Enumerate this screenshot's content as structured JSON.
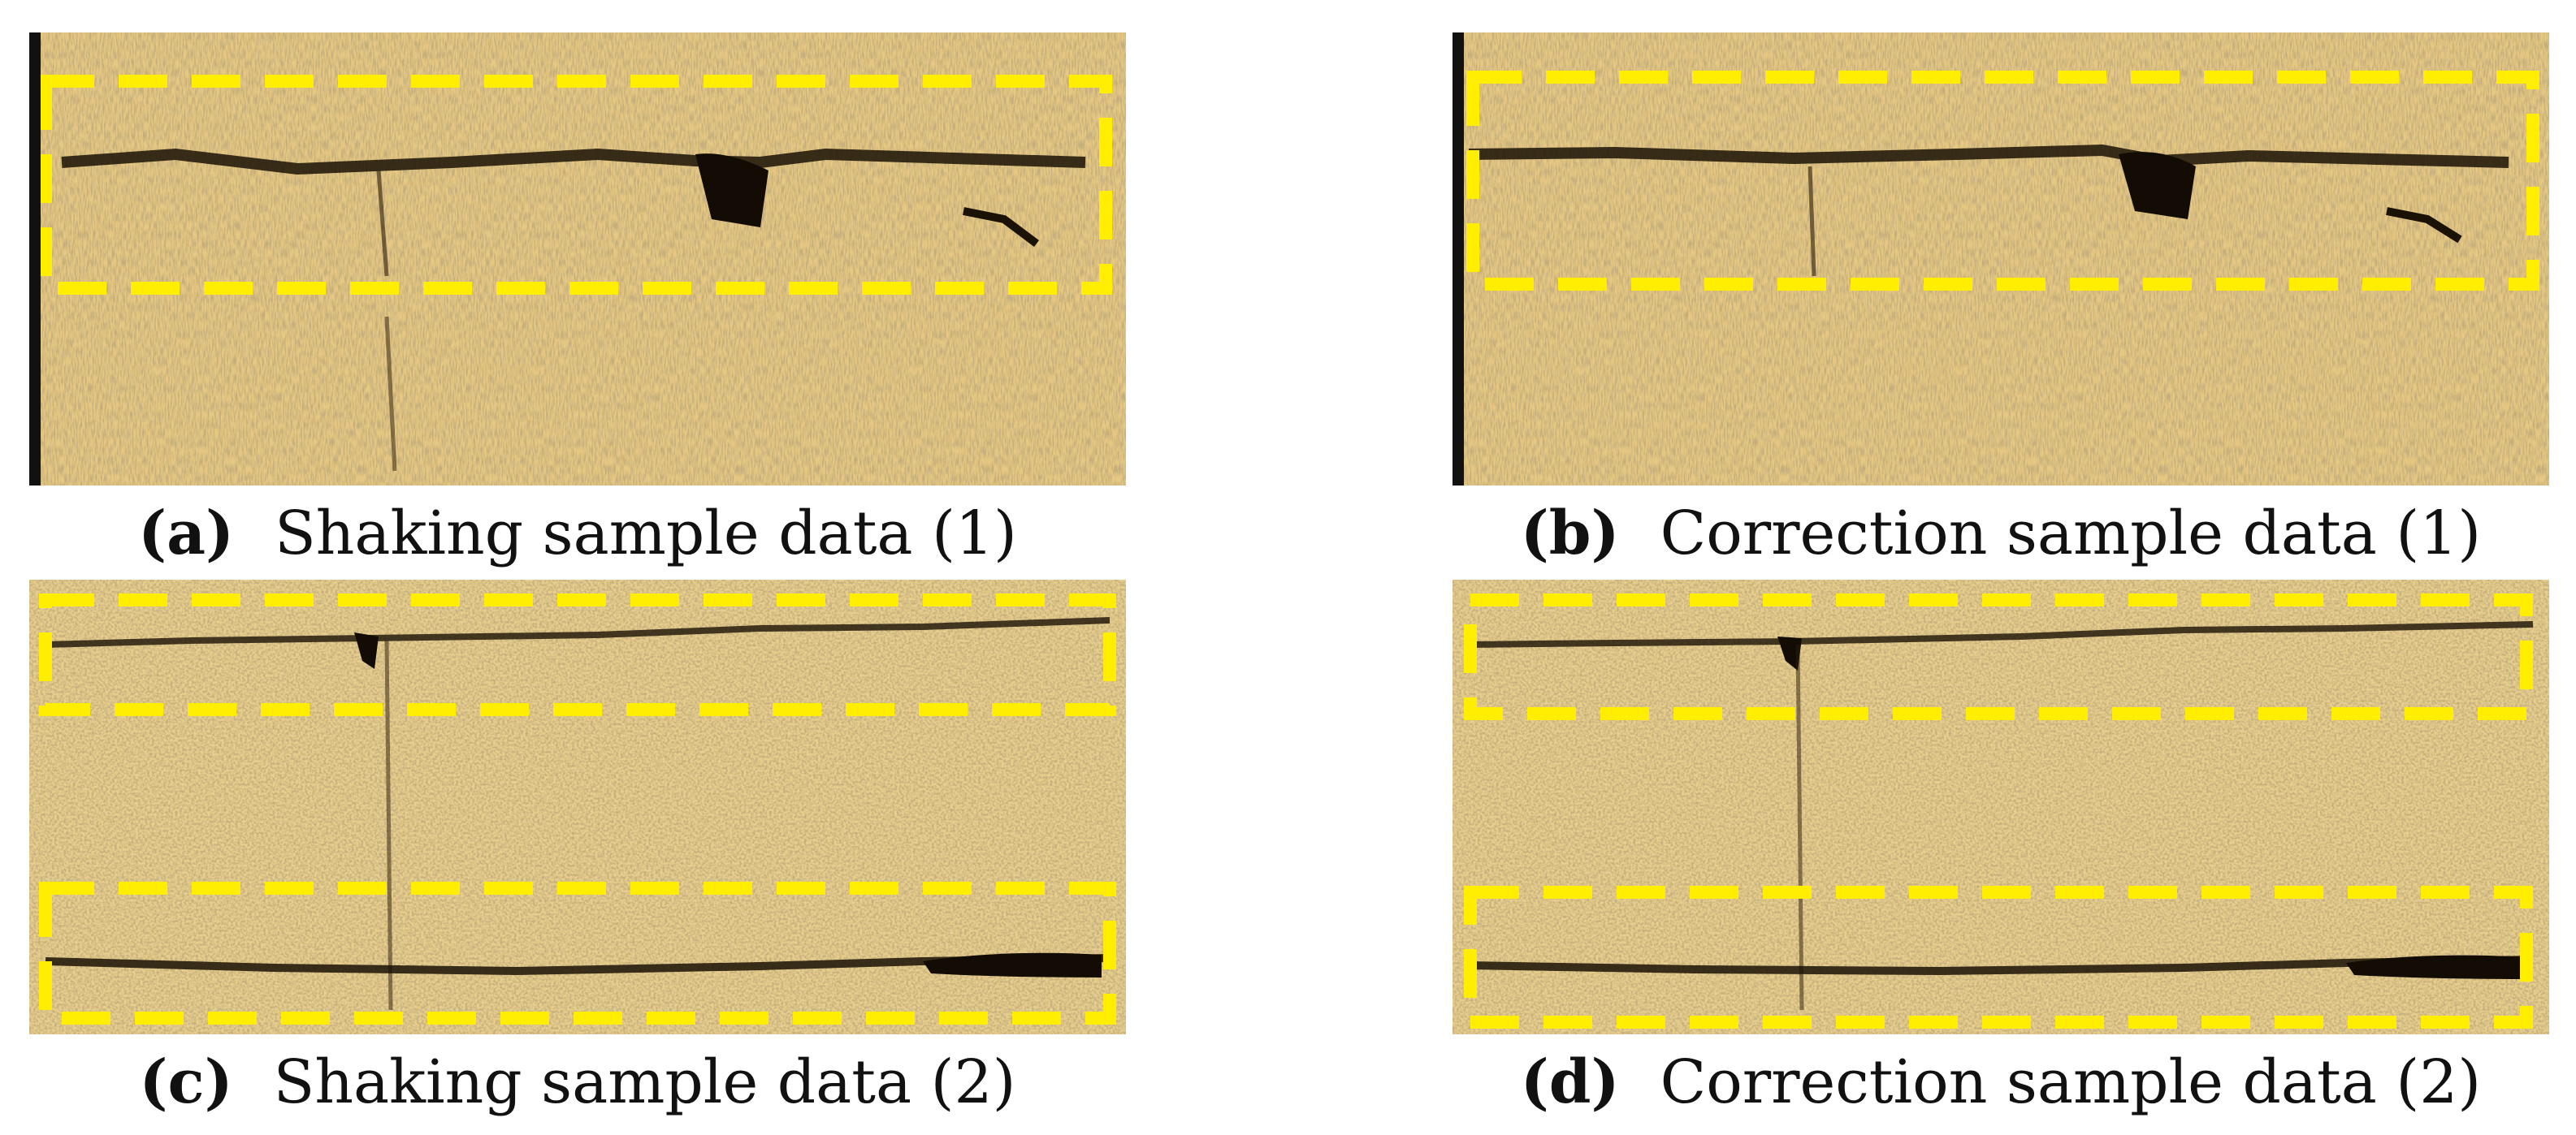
{
  "figure": {
    "panels": [
      {
        "id": "a",
        "tag": "(a)",
        "label": "Shaking sample data (1)"
      },
      {
        "id": "b",
        "tag": "(b)",
        "label": "Correction sample data (1)"
      },
      {
        "id": "c",
        "tag": "(c)",
        "label": "Shaking sample data (2)"
      },
      {
        "id": "d",
        "tag": "(d)",
        "label": "Correction sample data (2)"
      }
    ]
  },
  "colors": {
    "texture_base": "#b48a45",
    "texture_light": "#f2dca0",
    "texture_dark": "#2a1c0a",
    "highlight_box": "#ffee00"
  }
}
